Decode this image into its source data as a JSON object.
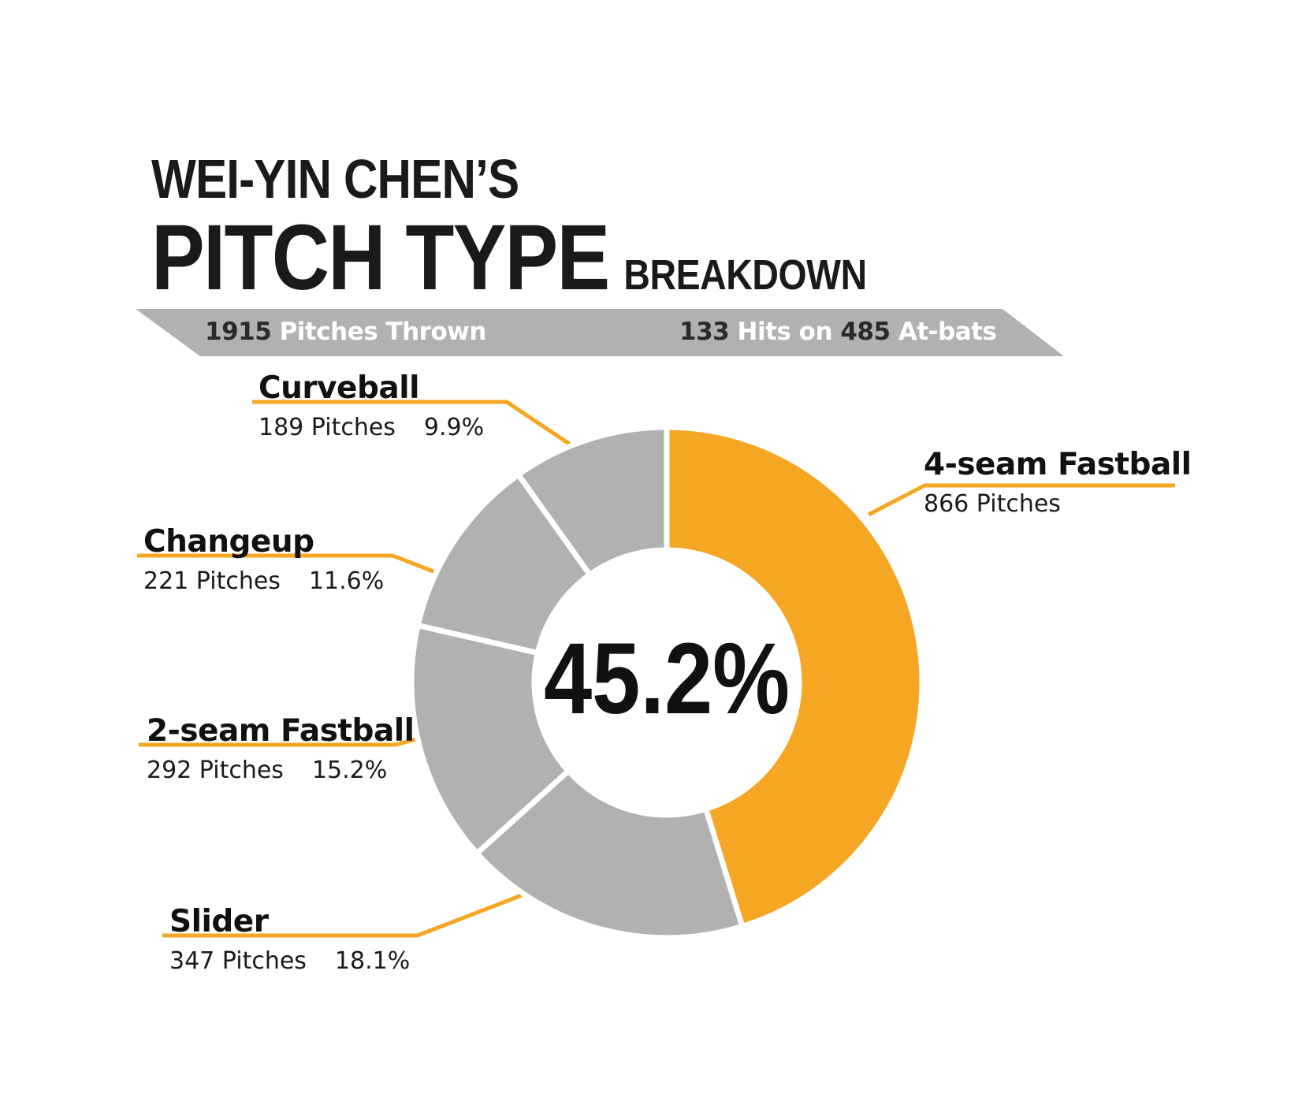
{
  "header": {
    "title_line1": "WEI-YIN CHEN’S",
    "title_big": "PITCH TYPE",
    "title_small": "BREAKDOWN"
  },
  "banner": {
    "pitches_count": "1915",
    "pitches_label": "Pitches Thrown",
    "hits_count": "133",
    "hits_label": "Hits on",
    "atbats_count": "485",
    "atbats_label": "At-bats"
  },
  "colors": {
    "accent": "#F5A623",
    "gray": "#B0B1B3",
    "banner": "#B0B1B3",
    "text": "#1A1A1A"
  },
  "chart_data": {
    "type": "pie",
    "center_label": "45.2%",
    "total": 1915,
    "slices": [
      {
        "name": "4-seam Fastball",
        "pitches_text": "866 Pitches",
        "pct_text": "",
        "value": 866,
        "percent": 45.2
      },
      {
        "name": "Slider",
        "pitches_text": "347 Pitches",
        "pct_text": "18.1%",
        "value": 347,
        "percent": 18.1
      },
      {
        "name": "2-seam Fastball",
        "pitches_text": "292 Pitches",
        "pct_text": "15.2%",
        "value": 292,
        "percent": 15.2
      },
      {
        "name": "Changeup",
        "pitches_text": "221 Pitches",
        "pct_text": "11.6%",
        "value": 221,
        "percent": 11.6
      },
      {
        "name": "Curveball",
        "pitches_text": "189 Pitches",
        "pct_text": "9.9%",
        "value": 189,
        "percent": 9.9
      }
    ]
  }
}
